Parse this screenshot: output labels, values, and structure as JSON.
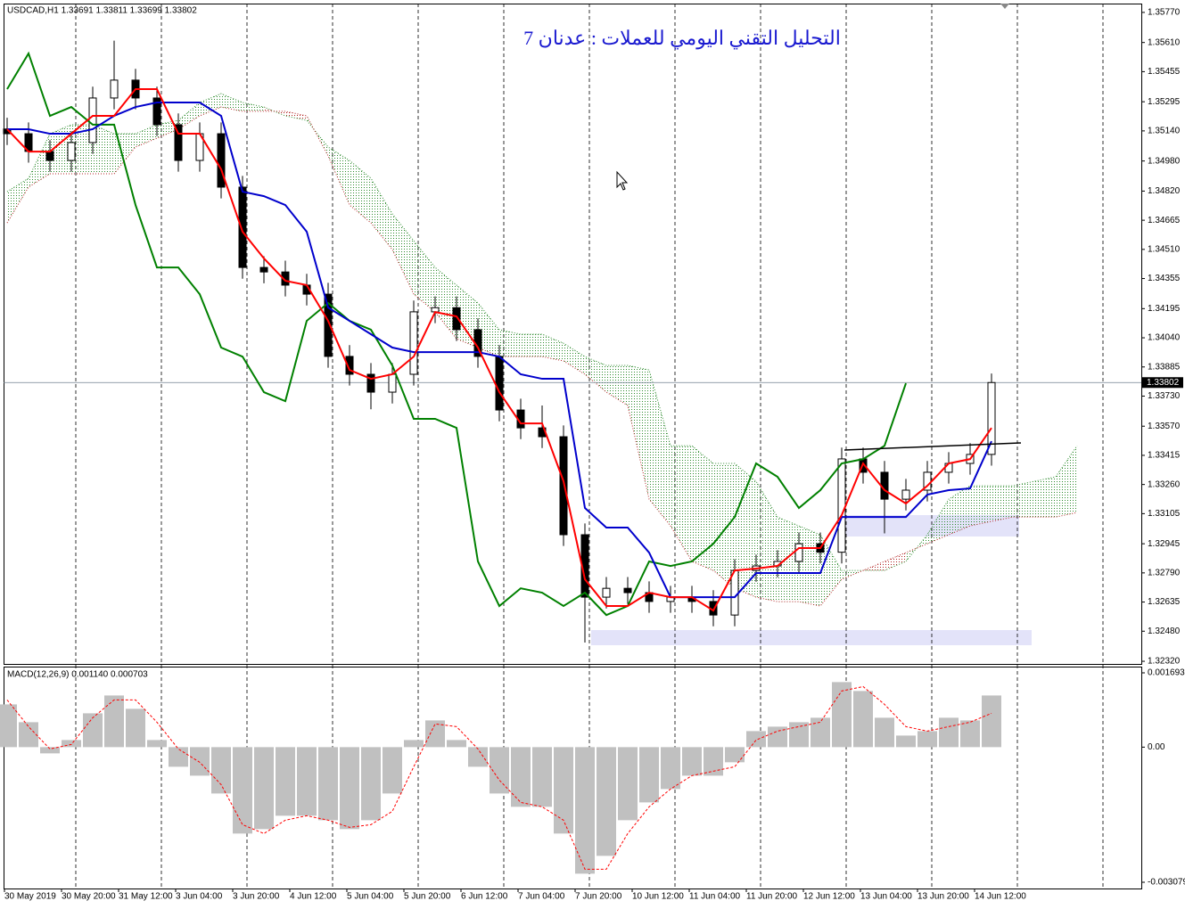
{
  "chart_data": [
    {
      "type": "candlestick",
      "title": "التحليل التقني اليومي للعملات : عدنان 7",
      "header": "USDCAD,H1  1.33691 1.33811 1.33699 1.33802",
      "last_price": 1.33802,
      "ylim": [
        1.32306,
        1.35817
      ],
      "yticks": [
        {
          "value": 1.3577,
          "label": "1.35770"
        },
        {
          "value": 1.3561,
          "label": "1.35610"
        },
        1.35455,
        1.35295,
        {
          "value": 1.3514,
          "label": "1.35140"
        },
        {
          "value": 1.3498,
          "label": "1.34980"
        },
        {
          "value": 1.3482,
          "label": "1.34820"
        },
        1.34665,
        {
          "value": 1.3451,
          "label": "1.34510"
        },
        1.34355,
        1.34195,
        {
          "value": 1.3404,
          "label": "1.34040"
        },
        1.33885,
        {
          "value": 1.3373,
          "label": "1.33730"
        },
        {
          "value": 1.3357,
          "label": "1.33570"
        },
        1.33415,
        {
          "value": 1.3326,
          "label": "1.33260"
        },
        1.33105,
        1.32945,
        {
          "value": 1.3279,
          "label": "1.32790"
        },
        1.32635,
        {
          "value": 1.3248,
          "label": "1.32480"
        },
        {
          "value": 1.3232,
          "label": "1.32320"
        }
      ],
      "xtick_labels": [
        "30 May 2019",
        "30 May 20:00",
        "31 May 12:00",
        "3 Jun 04:00",
        "3 Jun 20:00",
        "4 Jun 12:00",
        "5 Jun 04:00",
        "5 Jun 20:00",
        "6 Jun 12:00",
        "7 Jun 04:00",
        "7 Jun 20:00",
        "10 Jun 12:00",
        "11 Jun 04:00",
        "11 Jun 20:00",
        "12 Jun 12:00",
        "13 Jun 04:00",
        "13 Jun 20:00",
        "14 Jun 12:00"
      ],
      "colors": {
        "candle": "#000000",
        "tenkan": "#ff0000",
        "kijun": "#0000cc",
        "chikou": "#008000",
        "senkou_a": "#2e8b2e",
        "senkou_b": "#b22222"
      },
      "open": [
        1.3515,
        1.35125,
        1.35031,
        1.34983,
        1.35078,
        1.35315,
        1.3541,
        1.35315,
        1.35173,
        1.34983,
        1.35125,
        1.34841,
        1.34414,
        1.3439,
        1.3432,
        1.34272,
        1.33941,
        1.33846,
        1.33751,
        1.33846,
        1.34178,
        1.342,
        1.34083,
        1.33941,
        1.33656,
        1.33561,
        1.33514,
        1.32993,
        1.32661,
        1.32708,
        1.32685,
        1.32638,
        1.32661,
        1.32638,
        1.32566,
        1.32803,
        1.32827,
        1.32851,
        1.32945,
        1.329,
        1.33396,
        1.33325,
        1.33182,
        1.3323,
        1.33325,
        1.33372,
        1.3342,
        null,
        null,
        null,
        null
      ],
      "high": [
        1.3521,
        1.35185,
        1.35091,
        1.35138,
        1.35375,
        1.3562,
        1.3547,
        1.35375,
        1.35233,
        1.35185,
        1.35185,
        1.34901,
        1.34474,
        1.3445,
        1.3438,
        1.34332,
        1.34001,
        1.33906,
        1.33906,
        1.34238,
        1.3426,
        1.3426,
        1.34143,
        1.34001,
        1.33716,
        1.3368,
        1.33574,
        1.33053,
        1.32768,
        1.32768,
        1.32745,
        1.32721,
        1.32721,
        1.32698,
        1.32863,
        1.32887,
        1.32911,
        1.33005,
        1.33005,
        1.33456,
        1.33456,
        1.33385,
        1.3329,
        1.33385,
        1.33432,
        1.3348,
        1.3385,
        null,
        null,
        null,
        null
      ],
      "low": [
        1.35065,
        1.34971,
        1.34923,
        1.34923,
        1.35018,
        1.35255,
        1.35255,
        1.35113,
        1.34923,
        1.34923,
        1.34781,
        1.34354,
        1.3433,
        1.3426,
        1.34212,
        1.33881,
        1.33786,
        1.3366,
        1.33691,
        1.33786,
        1.34118,
        1.34023,
        1.33881,
        1.33596,
        1.33501,
        1.33454,
        1.32933,
        1.3242,
        1.32601,
        1.32625,
        1.32578,
        1.32578,
        1.32578,
        1.32506,
        1.32506,
        1.32743,
        1.32767,
        1.32791,
        1.3284,
        1.3284,
        1.33265,
        1.33,
        1.33122,
        1.3317,
        1.33265,
        1.33312,
        1.3336,
        null,
        null,
        null,
        null
      ],
      "close": [
        1.35125,
        1.35031,
        1.34983,
        1.35078,
        1.35315,
        1.3541,
        1.35315,
        1.35173,
        1.34983,
        1.35125,
        1.34841,
        1.34414,
        1.3439,
        1.3432,
        1.34272,
        1.33941,
        1.33846,
        1.33751,
        1.33846,
        1.34178,
        1.342,
        1.34083,
        1.33941,
        1.33656,
        1.33561,
        1.33514,
        1.32993,
        1.32661,
        1.32708,
        1.32685,
        1.32638,
        1.32661,
        1.32638,
        1.32566,
        1.32803,
        1.32827,
        1.32851,
        1.32945,
        1.329,
        1.33396,
        1.33325,
        1.33182,
        1.3323,
        1.33325,
        1.33372,
        1.3342,
        1.33802,
        null,
        null,
        null,
        null
      ],
      "tenkan": [
        1.35149,
        1.3503,
        1.3503,
        1.35125,
        1.3522,
        1.3522,
        1.35362,
        1.35362,
        1.35125,
        1.35125,
        1.34936,
        1.34604,
        1.34462,
        1.34343,
        1.3432,
        1.3413,
        1.33869,
        1.33822,
        1.33846,
        1.3394,
        1.34177,
        1.34154,
        1.33988,
        1.33751,
        1.33585,
        1.33585,
        1.33277,
        1.32756,
        1.32614,
        1.32614,
        1.32685,
        1.32661,
        1.32661,
        1.3259,
        1.32803,
        1.32813,
        1.32827,
        1.32922,
        1.32922,
        1.33097,
        1.33372,
        1.3323,
        1.33159,
        1.33253,
        1.33372,
        1.33395,
        1.33561,
        null,
        null,
        null,
        null
      ],
      "kijun": [
        1.35149,
        1.35149,
        1.35125,
        1.35125,
        1.35149,
        1.3522,
        1.35267,
        1.35291,
        1.35291,
        1.35291,
        1.3522,
        1.34817,
        1.34793,
        1.34746,
        1.34604,
        1.34201,
        1.3413,
        1.34059,
        1.33988,
        1.33964,
        1.33964,
        1.33964,
        1.33964,
        1.3394,
        1.33846,
        1.33822,
        1.33822,
        1.33135,
        1.33031,
        1.33031,
        1.32898,
        1.32661,
        1.32661,
        1.32661,
        1.32661,
        1.32789,
        1.32789,
        1.32789,
        1.32789,
        1.33087,
        1.33087,
        1.33087,
        1.33087,
        1.33206,
        1.3323,
        1.33239,
        1.3349,
        null,
        null,
        null,
        null
      ],
      "chikou": [
        1.35362,
        1.35552,
        1.3522,
        1.35267,
        1.35173,
        1.35173,
        1.34746,
        1.34414,
        1.34414,
        1.34272,
        1.33988,
        1.3394,
        1.33751,
        1.33703,
        1.3413,
        1.34225,
        1.3413,
        1.34083,
        1.33893,
        1.33609,
        1.33609,
        1.33561,
        1.32851,
        1.32614,
        1.32708,
        1.32685,
        1.32614,
        1.32685,
        1.32566,
        1.32614,
        1.32851,
        1.32827,
        1.32851,
        1.32945,
        1.33087,
        1.33372,
        1.33301,
        1.33135,
        1.3323,
        1.33372,
        1.33395,
        1.33466,
        1.33798,
        null,
        null,
        null,
        null,
        null,
        null,
        null,
        null
      ],
      "senkou_a": [
        1.34817,
        1.34888,
        1.35125,
        1.35173,
        1.35173,
        1.35125,
        1.35125,
        1.35173,
        1.35196,
        1.35291,
        1.35338,
        1.35291,
        1.35267,
        1.3522,
        1.35196,
        1.35054,
        1.34983,
        1.34888,
        1.34699,
        1.34556,
        1.34414,
        1.3432,
        1.34225,
        1.34083,
        1.34059,
        1.34059,
        1.34011,
        1.3394,
        1.33893,
        1.33893,
        1.33869,
        1.33466,
        1.33466,
        1.33372,
        1.33372,
        1.33277,
        1.33087,
        1.3304,
        1.32993,
        1.32803,
        1.32803,
        1.32803,
        1.32851,
        1.32993,
        1.33182,
        1.33253,
        1.33253,
        1.33253,
        1.33277,
        1.33301,
        1.33466
      ],
      "senkou_b": [
        1.34651,
        1.34841,
        1.34912,
        1.34912,
        1.34912,
        1.34912,
        1.35054,
        1.35101,
        1.35149,
        1.3522,
        1.35267,
        1.35244,
        1.35244,
        1.35244,
        1.3522,
        1.35007,
        1.34746,
        1.34651,
        1.34509,
        1.34272,
        1.34177,
        1.34035,
        1.33988,
        1.3394,
        1.3394,
        1.3394,
        1.33917,
        1.33846,
        1.33751,
        1.3368,
        1.33182,
        1.3304,
        1.32851,
        1.32803,
        1.32708,
        1.32661,
        1.32637,
        1.32637,
        1.32614,
        1.32756,
        1.32803,
        1.32851,
        1.32898,
        1.32945,
        1.32993,
        1.3304,
        1.33064,
        1.33087,
        1.33087,
        1.33087,
        1.33111
      ]
    },
    {
      "type": "macd",
      "label": "MACD(12,26,9) 0.001140 0.000703",
      "ylim": [
        -0.003221,
        0.001835
      ],
      "yticks": [
        0.001693,
        {
          "value": 0,
          "label": "0.00"
        },
        -0.003079
      ],
      "colors": {
        "histogram": "#c0c0c0",
        "signal": "#ff0000"
      },
      "histogram": [
        0.000974,
        0.000568,
        -0.000142,
        0.000162,
        0.000771,
        0.001177,
        0.000873,
        0.000162,
        -0.000447,
        -0.00065,
        -0.001056,
        -0.001969,
        -0.001868,
        -0.001563,
        -0.001563,
        -0.001665,
        -0.001868,
        -0.001665,
        -0.001056,
        0.000162,
        0.000609,
        0.000162,
        -0.000447,
        -0.001056,
        -0.00136,
        -0.00136,
        -0.001969,
        -0.002883,
        -0.002477,
        -0.001665,
        -0.001259,
        -0.000954,
        -0.00065,
        -0.00065,
        -0.000345,
        0.000365,
        0.000467,
        0.000568,
        0.00067,
        0.001482,
        0.001279,
        0.00067,
        0.000264,
        0.000365,
        0.00067,
        0.000609,
        0.001177
      ],
      "signal": [
        0.001076,
        0.000467,
        -4.1e-05,
        6.1e-05,
        0.00067,
        0.001076,
        0.001076,
        0.000568,
        -4.1e-05,
        -0.000345,
        -0.000853,
        -0.001766,
        -0.001969,
        -0.001665,
        -0.001563,
        -0.001665,
        -0.001827,
        -0.001766,
        -0.001462,
        -0.000447,
        0.000528,
        0.000467,
        -4.1e-05,
        -0.000751,
        -0.001259,
        -0.00136,
        -0.001665,
        -0.002781,
        -0.002781,
        -0.001969,
        -0.00136,
        -0.000954,
        -0.00065,
        -0.000548,
        -0.000447,
        0.000162,
        0.000365,
        0.000467,
        0.000568,
        0.001279,
        0.00138,
        0.000974,
        0.000467,
        0.000365,
        0.000467,
        0.000568,
        0.000771
      ]
    }
  ]
}
